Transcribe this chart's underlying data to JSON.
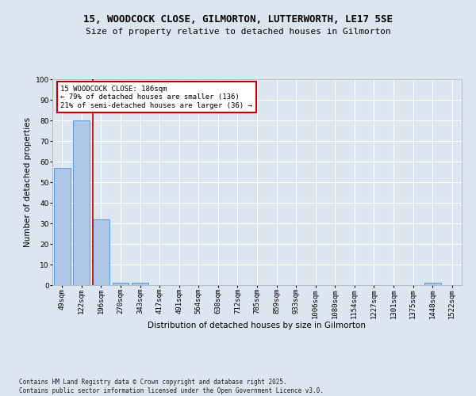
{
  "title_line1": "15, WOODCOCK CLOSE, GILMORTON, LUTTERWORTH, LE17 5SE",
  "title_line2": "Size of property relative to detached houses in Gilmorton",
  "xlabel": "Distribution of detached houses by size in Gilmorton",
  "ylabel": "Number of detached properties",
  "categories": [
    "49sqm",
    "122sqm",
    "196sqm",
    "270sqm",
    "343sqm",
    "417sqm",
    "491sqm",
    "564sqm",
    "638sqm",
    "712sqm",
    "785sqm",
    "859sqm",
    "933sqm",
    "1006sqm",
    "1080sqm",
    "1154sqm",
    "1227sqm",
    "1301sqm",
    "1375sqm",
    "1448sqm",
    "1522sqm"
  ],
  "values": [
    57,
    80,
    32,
    1,
    1,
    0,
    0,
    0,
    0,
    0,
    0,
    0,
    0,
    0,
    0,
    0,
    0,
    0,
    0,
    1,
    0
  ],
  "bar_color": "#aec6e8",
  "bar_edge_color": "#5b9bd5",
  "vline_color": "#c00000",
  "annotation_text": "15 WOODCOCK CLOSE: 186sqm\n← 79% of detached houses are smaller (136)\n21% of semi-detached houses are larger (36) →",
  "annotation_box_color": "#ffffff",
  "annotation_box_edge": "#c00000",
  "ylim": [
    0,
    100
  ],
  "yticks": [
    0,
    10,
    20,
    30,
    40,
    50,
    60,
    70,
    80,
    90,
    100
  ],
  "background_color": "#dce6f1",
  "plot_bg_color": "#dce6f1",
  "footer_text": "Contains HM Land Registry data © Crown copyright and database right 2025.\nContains public sector information licensed under the Open Government Licence v3.0.",
  "grid_color": "#ffffff",
  "title_fontsize": 9,
  "subtitle_fontsize": 8,
  "tick_fontsize": 6.5,
  "label_fontsize": 7.5,
  "annotation_fontsize": 6.5,
  "footer_fontsize": 5.5
}
